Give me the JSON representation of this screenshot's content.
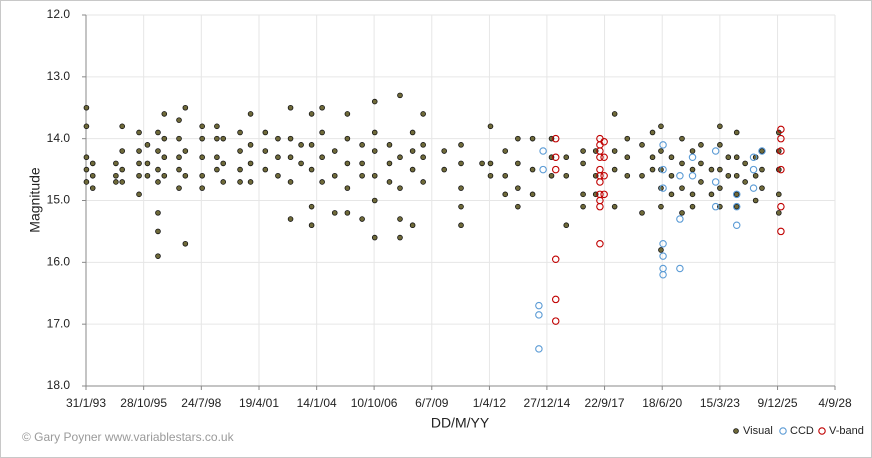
{
  "chart_data": {
    "type": "scatter",
    "xlabel": "DD/M/YY",
    "ylabel": "Magnitude",
    "annotations": [
      "© Gary Poyner  www.variablestars.co.uk"
    ],
    "xlim": [
      1993.08,
      2028.67
    ],
    "xticks": [
      {
        "value": 1993.08,
        "label": "31/1/93"
      },
      {
        "value": 1995.82,
        "label": "28/10/95"
      },
      {
        "value": 1998.56,
        "label": "24/7/98"
      },
      {
        "value": 2001.3,
        "label": "19/4/01"
      },
      {
        "value": 2004.04,
        "label": "14/1/04"
      },
      {
        "value": 2006.77,
        "label": "10/10/06"
      },
      {
        "value": 2009.51,
        "label": "6/7/09"
      },
      {
        "value": 2012.25,
        "label": "1/4/12"
      },
      {
        "value": 2014.98,
        "label": "27/12/14"
      },
      {
        "value": 2017.72,
        "label": "22/9/17"
      },
      {
        "value": 2020.46,
        "label": "18/6/20"
      },
      {
        "value": 2023.2,
        "label": "15/3/23"
      },
      {
        "value": 2025.94,
        "label": "9/12/25"
      },
      {
        "value": 2028.67,
        "label": "4/9/28"
      }
    ],
    "ylim": [
      12,
      18
    ],
    "y_inverted": true,
    "yticks": [
      {
        "value": 12,
        "label": "12.0"
      },
      {
        "value": 13,
        "label": "13.0"
      },
      {
        "value": 14,
        "label": "14.0"
      },
      {
        "value": 15,
        "label": "15.0"
      },
      {
        "value": 16,
        "label": "16.0"
      },
      {
        "value": 17,
        "label": "17.0"
      },
      {
        "value": 18,
        "label": "18.0"
      }
    ],
    "grid": true,
    "legend": "bottom-right",
    "series": [
      {
        "name": "Visual",
        "color": "#6f6a3a",
        "marker": "filled",
        "x": [
          1993.1,
          1993.1,
          1993.1,
          1993.1,
          1993.1,
          1993.4,
          1993.4,
          1993.4,
          1994.5,
          1994.5,
          1994.5,
          1994.8,
          1994.8,
          1994.8,
          1994.8,
          1995.6,
          1995.6,
          1995.6,
          1995.6,
          1995.6,
          1996.0,
          1996.0,
          1996.0,
          1996.5,
          1996.5,
          1996.5,
          1996.5,
          1996.5,
          1996.5,
          1996.5,
          1996.8,
          1996.8,
          1996.8,
          1996.8,
          1997.5,
          1997.5,
          1997.5,
          1997.5,
          1997.5,
          1997.8,
          1997.8,
          1997.8,
          1997.8,
          1998.6,
          1998.6,
          1998.6,
          1998.6,
          1998.6,
          1999.3,
          1999.3,
          1999.3,
          1999.3,
          1999.6,
          1999.6,
          1999.6,
          2000.4,
          2000.4,
          2000.4,
          2000.4,
          2000.9,
          2000.9,
          2000.9,
          2000.9,
          2001.6,
          2001.6,
          2001.6,
          2002.2,
          2002.2,
          2002.2,
          2002.8,
          2002.8,
          2002.8,
          2002.8,
          2002.8,
          2003.3,
          2003.3,
          2003.8,
          2003.8,
          2003.8,
          2003.8,
          2003.8,
          2004.3,
          2004.3,
          2004.3,
          2004.3,
          2004.9,
          2004.9,
          2004.9,
          2005.5,
          2005.5,
          2005.5,
          2005.5,
          2005.5,
          2006.2,
          2006.2,
          2006.2,
          2006.2,
          2006.8,
          2006.8,
          2006.8,
          2006.8,
          2006.8,
          2006.8,
          2007.5,
          2007.5,
          2007.5,
          2008.0,
          2008.0,
          2008.0,
          2008.0,
          2008.0,
          2008.6,
          2008.6,
          2008.6,
          2008.6,
          2009.1,
          2009.1,
          2009.1,
          2009.1,
          2010.1,
          2010.1,
          2010.9,
          2010.9,
          2010.9,
          2010.9,
          2010.9,
          2011.9,
          2012.3,
          2012.3,
          2012.3,
          2013.0,
          2013.0,
          2013.0,
          2013.6,
          2013.6,
          2013.6,
          2013.6,
          2014.3,
          2014.3,
          2014.3,
          2015.2,
          2015.2,
          2015.2,
          2015.9,
          2015.9,
          2015.9,
          2016.7,
          2016.7,
          2016.7,
          2016.7,
          2017.3,
          2017.3,
          2017.3,
          2018.2,
          2018.2,
          2018.2,
          2018.2,
          2018.8,
          2018.8,
          2018.8,
          2019.5,
          2019.5,
          2019.5,
          2020.0,
          2020.0,
          2020.0,
          2020.4,
          2020.4,
          2020.4,
          2020.4,
          2020.4,
          2020.4,
          2020.9,
          2020.9,
          2020.9,
          2021.4,
          2021.4,
          2021.4,
          2021.4,
          2021.9,
          2021.9,
          2021.9,
          2021.9,
          2022.3,
          2022.3,
          2022.3,
          2022.8,
          2022.8,
          2023.2,
          2023.2,
          2023.2,
          2023.2,
          2023.2,
          2023.6,
          2023.6,
          2024.0,
          2024.0,
          2024.0,
          2024.0,
          2024.0,
          2024.4,
          2024.4,
          2024.9,
          2024.9,
          2024.9,
          2025.2,
          2025.2,
          2025.2,
          2026.0,
          2026.0,
          2026.0,
          2026.0,
          2026.0
        ],
        "values": [
          13.5,
          13.8,
          14.3,
          14.5,
          14.7,
          14.4,
          14.6,
          14.8,
          14.4,
          14.6,
          14.7,
          13.8,
          14.2,
          14.5,
          14.7,
          13.9,
          14.2,
          14.4,
          14.6,
          14.9,
          14.1,
          14.4,
          14.6,
          13.9,
          14.2,
          14.5,
          14.7,
          15.2,
          15.5,
          15.9,
          13.6,
          14.0,
          14.3,
          14.6,
          13.7,
          14.0,
          14.3,
          14.5,
          14.8,
          13.5,
          14.2,
          14.6,
          15.7,
          13.8,
          14.0,
          14.3,
          14.6,
          14.8,
          13.8,
          14.0,
          14.3,
          14.5,
          14.0,
          14.4,
          14.7,
          13.9,
          14.2,
          14.5,
          14.7,
          13.6,
          14.1,
          14.4,
          14.7,
          13.9,
          14.2,
          14.5,
          14.0,
          14.3,
          14.6,
          13.5,
          14.0,
          14.3,
          14.7,
          15.3,
          14.1,
          14.4,
          13.6,
          14.1,
          14.5,
          15.1,
          15.4,
          13.5,
          13.9,
          14.3,
          14.7,
          14.2,
          14.6,
          15.2,
          13.6,
          14.0,
          14.4,
          14.8,
          15.2,
          14.1,
          14.4,
          14.6,
          15.3,
          13.4,
          13.9,
          14.2,
          14.6,
          15.0,
          15.6,
          14.1,
          14.4,
          14.7,
          13.3,
          14.3,
          14.8,
          15.3,
          15.6,
          13.9,
          14.2,
          14.5,
          15.4,
          13.6,
          14.1,
          14.3,
          14.7,
          14.2,
          14.5,
          14.1,
          14.4,
          14.8,
          15.1,
          15.4,
          14.4,
          13.8,
          14.4,
          14.6,
          14.2,
          14.6,
          14.9,
          14.0,
          14.4,
          14.8,
          15.1,
          14.0,
          14.5,
          14.9,
          14.0,
          14.3,
          14.6,
          14.3,
          14.6,
          15.4,
          14.2,
          14.4,
          14.9,
          15.1,
          14.2,
          14.6,
          14.9,
          13.6,
          14.2,
          14.5,
          15.1,
          14.0,
          14.3,
          14.6,
          14.1,
          14.6,
          15.2,
          13.9,
          14.3,
          14.5,
          13.8,
          14.2,
          14.5,
          14.8,
          15.1,
          15.8,
          14.3,
          14.6,
          14.9,
          14.0,
          14.4,
          14.8,
          15.2,
          14.2,
          14.5,
          14.9,
          15.1,
          14.1,
          14.4,
          14.7,
          14.5,
          14.9,
          13.8,
          14.1,
          14.5,
          14.8,
          15.1,
          14.3,
          14.6,
          13.9,
          14.3,
          14.6,
          14.9,
          15.1,
          14.4,
          14.7,
          14.3,
          14.6,
          15.0,
          14.2,
          14.5,
          14.8,
          13.9,
          14.2,
          14.5,
          14.9,
          15.2
        ]
      },
      {
        "name": "CCD",
        "color": "#5b9bd5",
        "marker": "hollow",
        "x": [
          2014.6,
          2014.6,
          2014.6,
          2014.8,
          2014.8,
          2020.5,
          2020.5,
          2020.5,
          2020.5,
          2020.5,
          2020.5,
          2020.5,
          2021.3,
          2021.3,
          2021.3,
          2021.9,
          2021.9,
          2023.0,
          2023.0,
          2023.0,
          2024.0,
          2024.0,
          2024.0,
          2024.8,
          2024.8,
          2024.8,
          2025.2
        ],
        "values": [
          16.7,
          16.85,
          17.4,
          14.2,
          14.5,
          14.1,
          14.5,
          14.8,
          15.7,
          15.9,
          16.1,
          16.2,
          14.6,
          16.1,
          15.3,
          14.3,
          14.6,
          14.2,
          14.7,
          15.1,
          14.9,
          15.1,
          15.4,
          14.3,
          14.5,
          14.8,
          14.2
        ]
      },
      {
        "name": "V-band",
        "color": "#c00000",
        "marker": "hollow",
        "x": [
          2015.4,
          2015.4,
          2015.4,
          2015.4,
          2015.4,
          2015.4,
          2017.5,
          2017.5,
          2017.5,
          2017.5,
          2017.5,
          2017.5,
          2017.5,
          2017.5,
          2017.5,
          2017.5,
          2017.5,
          2017.7,
          2017.7,
          2017.7,
          2017.7,
          2026.1,
          2026.1,
          2026.1,
          2026.1,
          2026.1,
          2026.1
        ],
        "values": [
          14.0,
          14.3,
          14.5,
          16.6,
          16.95,
          15.95,
          14.0,
          14.1,
          14.2,
          14.3,
          14.5,
          14.6,
          14.7,
          14.9,
          15.0,
          15.1,
          15.7,
          14.05,
          14.3,
          14.6,
          14.9,
          13.85,
          14.0,
          14.2,
          14.5,
          15.1,
          15.5
        ]
      }
    ]
  }
}
